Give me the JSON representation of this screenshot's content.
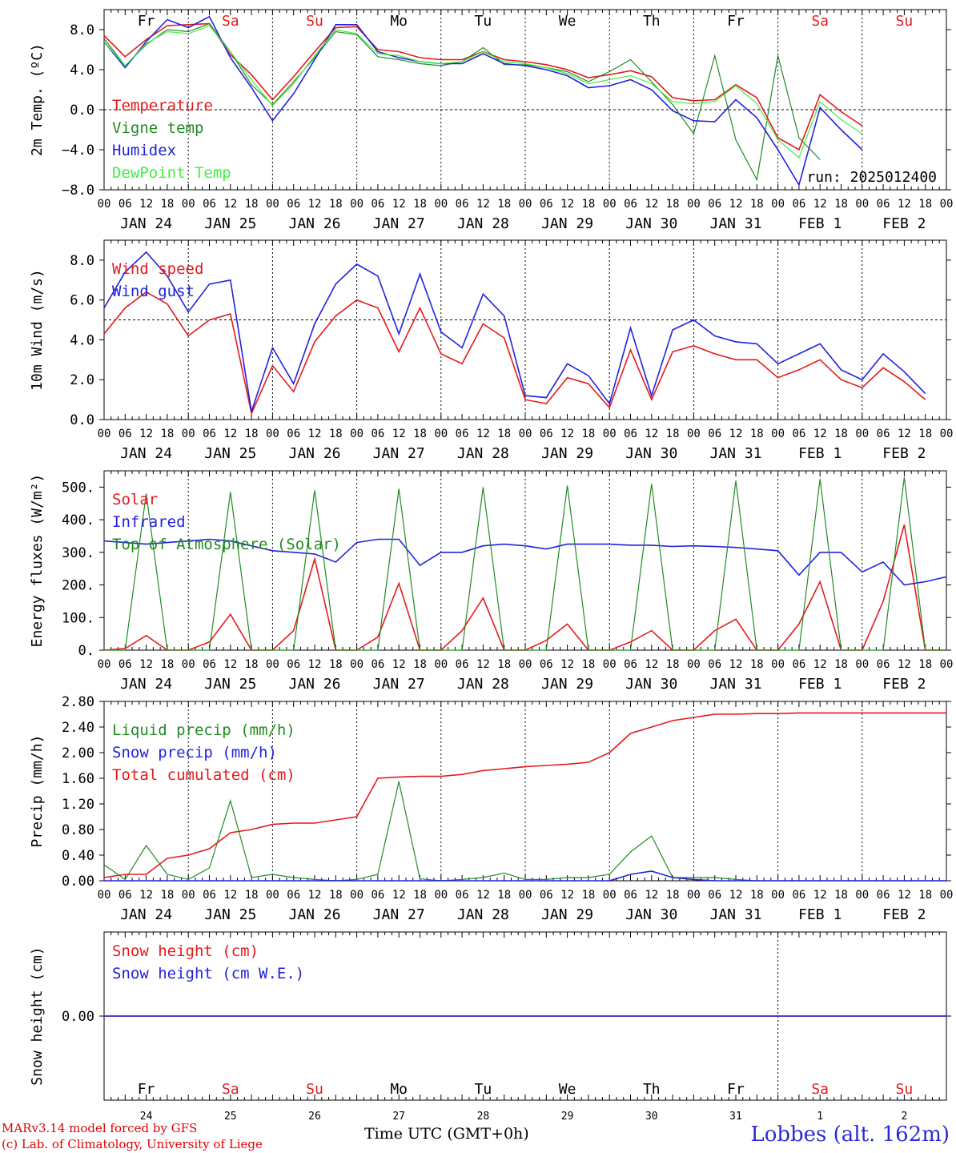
{
  "footer": {
    "credit_line1": "MARv3.14 model forced by GFS",
    "credit_line2": "(c) Lab. of Climatology, University of Liege",
    "station": "Lobbes (alt. 162m)",
    "time_axis_label": "Time UTC (GMT+0h)"
  },
  "colors": {
    "red": "#e41a1c",
    "green": "#228b22",
    "blue": "#2222dd",
    "light_green": "#44ee44",
    "weekend": "#e41a1c"
  },
  "days": {
    "weekdays": [
      "Fr",
      "Sa",
      "Su",
      "Mo",
      "Tu",
      "We",
      "Th",
      "Fr",
      "Sa",
      "Su"
    ],
    "weekend_flags": [
      false,
      true,
      true,
      false,
      false,
      false,
      false,
      false,
      true,
      true
    ],
    "dates": [
      "JAN 24",
      "JAN 25",
      "JAN 26",
      "JAN 27",
      "JAN 28",
      "JAN 29",
      "JAN 30",
      "JAN 31",
      "FEB  1",
      "FEB  2"
    ],
    "day_numbers": [
      "24",
      "25",
      "26",
      "27",
      "28",
      "29",
      "30",
      "31",
      "1",
      "2"
    ],
    "hour_ticks": [
      "00",
      "06",
      "12",
      "18"
    ],
    "final_tick": "00"
  },
  "chart_data": [
    {
      "type": "line",
      "ylabel": "2m Temp. (ºC)",
      "ylim": [
        -8,
        10
      ],
      "yticks": [
        "8.0",
        "4.0",
        "0.0",
        "−4.0",
        "−8.0"
      ],
      "ytick_values": [
        8,
        4,
        0,
        -4,
        -8
      ],
      "reference_line": 0,
      "annotation": "run: 2025012400",
      "x_hours": [
        0,
        6,
        12,
        18,
        24,
        30,
        36,
        42,
        48,
        54,
        60,
        66,
        72,
        78,
        84,
        90,
        96,
        102,
        108,
        114,
        120,
        126,
        132,
        138,
        144,
        150,
        156,
        162,
        168,
        174,
        180,
        186,
        192,
        198,
        204,
        210,
        216,
        222,
        228,
        234,
        240
      ],
      "series": [
        {
          "name": "Temperature",
          "color": "red",
          "values": [
            7.4,
            5.3,
            7.0,
            8.4,
            8.5,
            8.6,
            5.5,
            3.5,
            1.0,
            3.3,
            5.8,
            8.2,
            8.3,
            6.0,
            5.8,
            5.2,
            5.0,
            5.0,
            5.8,
            5.0,
            4.8,
            4.5,
            4.0,
            3.2,
            3.5,
            3.9,
            3.3,
            1.2,
            0.9,
            1.0,
            2.5,
            1.2,
            -2.8,
            -4.0,
            1.5,
            -0.2,
            -1.6,
            null,
            null,
            null,
            null
          ]
        },
        {
          "name": "Vigne temp",
          "color": "green",
          "values": [
            7.1,
            4.4,
            6.5,
            8.0,
            7.8,
            8.6,
            5.8,
            2.5,
            0.5,
            2.8,
            5.2,
            7.8,
            7.5,
            5.3,
            5.0,
            4.6,
            4.4,
            4.8,
            6.2,
            4.5,
            4.5,
            4.2,
            3.8,
            2.8,
            3.8,
            5.0,
            2.8,
            0.5,
            -2.4,
            5.4,
            -3.0,
            -7.0,
            5.4,
            -2.8,
            -5.0,
            null,
            null,
            null,
            null,
            null,
            null
          ]
        },
        {
          "name": "Humidex",
          "color": "blue",
          "values": [
            6.8,
            4.2,
            6.8,
            9.0,
            8.2,
            9.3,
            5.2,
            2.2,
            -1.1,
            1.6,
            5.0,
            8.5,
            8.5,
            5.8,
            5.2,
            4.8,
            4.6,
            4.6,
            5.6,
            4.6,
            4.4,
            4.0,
            3.4,
            2.2,
            2.4,
            3.0,
            2.0,
            -0.1,
            -1.1,
            -1.2,
            1.0,
            -0.8,
            -4.0,
            -7.5,
            0.2,
            -2.0,
            -4.0,
            null,
            null,
            null,
            null
          ]
        },
        {
          "name": "DewPoint Temp",
          "color": "light_green",
          "values": [
            6.8,
            4.4,
            6.6,
            7.8,
            7.6,
            8.4,
            5.8,
            3.0,
            0.4,
            2.6,
            5.4,
            8.0,
            7.6,
            5.6,
            5.4,
            4.8,
            4.6,
            4.8,
            5.8,
            4.8,
            4.6,
            4.2,
            3.6,
            2.6,
            3.0,
            3.4,
            2.6,
            0.8,
            0.6,
            0.8,
            2.4,
            0.6,
            -3.0,
            -4.8,
            0.8,
            -1.0,
            -2.4,
            null,
            null,
            null,
            null
          ]
        }
      ]
    },
    {
      "type": "line",
      "ylabel": "10m Wind (m/s)",
      "ylim": [
        0,
        9
      ],
      "yticks": [
        "8.0",
        "6.0",
        "4.0",
        "2.0",
        "0.0"
      ],
      "ytick_values": [
        8,
        6,
        4,
        2,
        0
      ],
      "reference_line": 5,
      "x_hours": [
        0,
        6,
        12,
        18,
        24,
        30,
        36,
        42,
        48,
        54,
        60,
        66,
        72,
        78,
        84,
        90,
        96,
        102,
        108,
        114,
        120,
        126,
        132,
        138,
        144,
        150,
        156,
        162,
        168,
        174,
        180,
        186,
        192,
        198,
        204,
        210,
        216,
        222,
        228,
        234,
        240
      ],
      "series": [
        {
          "name": "Wind speed",
          "color": "red",
          "values": [
            4.3,
            5.6,
            6.4,
            5.8,
            4.2,
            5.0,
            5.3,
            0.3,
            2.7,
            1.4,
            3.9,
            5.2,
            6.0,
            5.6,
            3.4,
            5.6,
            3.3,
            2.8,
            4.8,
            4.1,
            1.0,
            0.8,
            2.1,
            1.8,
            0.6,
            3.5,
            1.0,
            3.4,
            3.7,
            3.3,
            3.0,
            3.0,
            2.1,
            2.5,
            3.0,
            2.0,
            1.6,
            2.6,
            1.9,
            1.0,
            null
          ]
        },
        {
          "name": "Wind gust",
          "color": "blue",
          "values": [
            5.6,
            7.4,
            8.4,
            7.2,
            5.4,
            6.8,
            7.0,
            0.4,
            3.6,
            1.8,
            4.8,
            6.8,
            7.8,
            7.2,
            4.3,
            7.3,
            4.4,
            3.6,
            6.3,
            5.2,
            1.2,
            1.1,
            2.8,
            2.2,
            0.8,
            4.6,
            1.2,
            4.5,
            5.0,
            4.2,
            3.9,
            3.8,
            2.8,
            3.3,
            3.8,
            2.5,
            2.0,
            3.3,
            2.4,
            1.3,
            null
          ]
        }
      ]
    },
    {
      "type": "line",
      "ylabel": "Energy fluxes (W/m²)",
      "ylim": [
        0,
        550
      ],
      "yticks": [
        "500.",
        "400.",
        "300.",
        "200.",
        "100.",
        "0."
      ],
      "ytick_values": [
        500,
        400,
        300,
        200,
        100,
        0
      ],
      "x_hours": [
        0,
        6,
        12,
        18,
        24,
        30,
        36,
        42,
        48,
        54,
        60,
        66,
        72,
        78,
        84,
        90,
        96,
        102,
        108,
        114,
        120,
        126,
        132,
        138,
        144,
        150,
        156,
        162,
        168,
        174,
        180,
        186,
        192,
        198,
        204,
        210,
        216,
        222,
        228,
        234,
        240
      ],
      "series": [
        {
          "name": "Solar",
          "color": "red",
          "values": [
            0,
            5,
            45,
            0,
            0,
            25,
            110,
            0,
            0,
            60,
            280,
            0,
            0,
            40,
            205,
            0,
            0,
            60,
            160,
            0,
            0,
            30,
            80,
            0,
            0,
            25,
            60,
            0,
            0,
            60,
            95,
            0,
            0,
            80,
            210,
            0,
            0,
            150,
            385,
            0,
            0
          ]
        },
        {
          "name": "Infrared",
          "color": "blue",
          "values": [
            335,
            330,
            325,
            330,
            335,
            340,
            335,
            320,
            305,
            300,
            295,
            270,
            330,
            340,
            340,
            260,
            300,
            300,
            320,
            325,
            320,
            310,
            325,
            325,
            325,
            322,
            322,
            318,
            320,
            318,
            315,
            310,
            305,
            230,
            300,
            300,
            240,
            270,
            200,
            210,
            225
          ]
        },
        {
          "name": "Top of Atmosphere (Solar)",
          "color": "green",
          "values": [
            0,
            0,
            480,
            0,
            0,
            0,
            485,
            0,
            0,
            0,
            490,
            0,
            0,
            0,
            495,
            0,
            0,
            0,
            500,
            0,
            0,
            0,
            505,
            0,
            0,
            0,
            510,
            0,
            0,
            0,
            520,
            0,
            0,
            0,
            525,
            0,
            0,
            0,
            530,
            0,
            0
          ]
        }
      ]
    },
    {
      "type": "line",
      "ylabel": "Precip (mm/h)",
      "ylim": [
        0,
        2.8
      ],
      "yticks": [
        "2.80",
        "2.40",
        "2.00",
        "1.60",
        "1.20",
        "0.80",
        "0.40",
        "0.00"
      ],
      "ytick_values": [
        2.8,
        2.4,
        2.0,
        1.6,
        1.2,
        0.8,
        0.4,
        0.0
      ],
      "x_hours": [
        0,
        6,
        12,
        18,
        24,
        30,
        36,
        42,
        48,
        54,
        60,
        66,
        72,
        78,
        84,
        90,
        96,
        102,
        108,
        114,
        120,
        126,
        132,
        138,
        144,
        150,
        156,
        162,
        168,
        174,
        180,
        186,
        192,
        198,
        204,
        210,
        216,
        222,
        228,
        234,
        240
      ],
      "series": [
        {
          "name": "Liquid precip (mm/h)",
          "color": "green",
          "values": [
            0.25,
            0.02,
            0.55,
            0.1,
            0.02,
            0.2,
            1.25,
            0.05,
            0.1,
            0.05,
            0.02,
            0.0,
            0.02,
            0.1,
            1.55,
            0.03,
            0.0,
            0.02,
            0.05,
            0.12,
            0.02,
            0.02,
            0.05,
            0.05,
            0.1,
            0.45,
            0.7,
            0.05,
            0.05,
            0.05,
            0.02,
            0.0,
            0.0,
            0.0,
            0.0,
            0.0,
            0.0,
            0.0,
            0.0,
            0.0,
            0.0
          ]
        },
        {
          "name": "Snow precip (mm/h)",
          "color": "blue",
          "values": [
            0,
            0,
            0,
            0,
            0,
            0,
            0,
            0,
            0,
            0,
            0,
            0,
            0,
            0,
            0,
            0,
            0,
            0,
            0,
            0,
            0,
            0,
            0,
            0,
            0,
            0.1,
            0.15,
            0.05,
            0.02,
            0,
            0,
            0,
            0,
            0,
            0,
            0,
            0,
            0,
            0,
            0,
            0
          ]
        },
        {
          "name": "Total cumulated (cm)",
          "color": "red",
          "values": [
            0.05,
            0.1,
            0.1,
            0.35,
            0.4,
            0.5,
            0.75,
            0.8,
            0.88,
            0.9,
            0.9,
            0.95,
            1.0,
            1.6,
            1.62,
            1.63,
            1.63,
            1.66,
            1.72,
            1.75,
            1.78,
            1.8,
            1.82,
            1.85,
            2.0,
            2.3,
            2.4,
            2.5,
            2.55,
            2.6,
            2.6,
            2.61,
            2.61,
            2.62,
            2.62,
            2.62,
            2.62,
            2.62,
            2.62,
            2.62,
            2.62
          ]
        }
      ]
    },
    {
      "type": "line",
      "ylabel": "Snow height (cm)",
      "ylim": [
        -1,
        1
      ],
      "yticks": [
        "0.00"
      ],
      "ytick_values": [
        0
      ],
      "x_hours": [
        0,
        240
      ],
      "series": [
        {
          "name": "Snow height (cm)",
          "color": "red",
          "values": [
            0,
            0
          ]
        },
        {
          "name": "Snow height (cm W.E.)",
          "color": "blue",
          "values": [
            0,
            0
          ]
        }
      ]
    }
  ]
}
